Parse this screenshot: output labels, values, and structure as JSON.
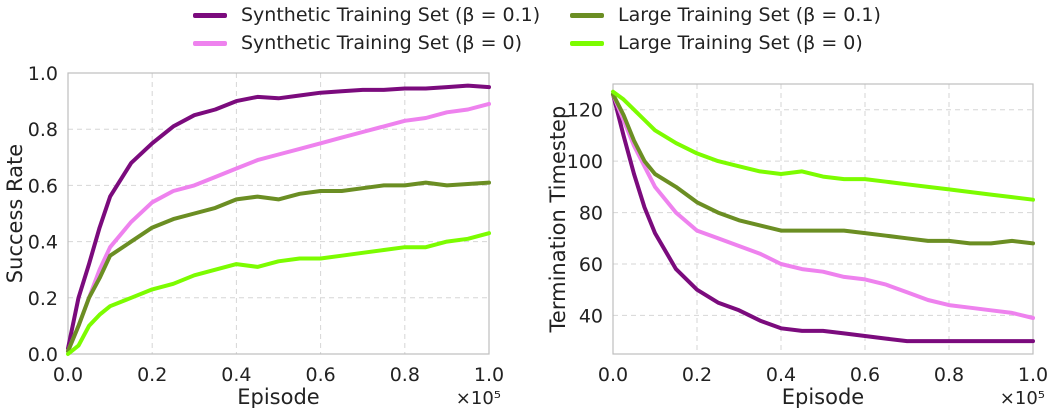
{
  "legend": {
    "items": [
      {
        "name": "Synthetic Training Set (β = 0.1)",
        "color": "#7b0b7d"
      },
      {
        "name": "Large Training Set (β = 0.1)",
        "color": "#6b8e23"
      },
      {
        "name": "Synthetic Training Set (β = 0)",
        "color": "#ee82ee"
      },
      {
        "name": "Large Training Set (β = 0)",
        "color": "#7cfc00"
      }
    ]
  },
  "chart_data": [
    {
      "type": "line",
      "xlabel": "Episode",
      "ylabel": "Success Rate",
      "x_multiplier_label": "×10⁵",
      "xlim": [
        0,
        1.0
      ],
      "ylim": [
        0,
        1.0
      ],
      "xticks": [
        "0.0",
        "0.2",
        "0.4",
        "0.6",
        "0.8",
        "1.0"
      ],
      "yticks": [
        "0.0",
        "0.2",
        "0.4",
        "0.6",
        "0.8",
        "1.0"
      ],
      "grid": true,
      "x": [
        0,
        0.025,
        0.05,
        0.075,
        0.1,
        0.15,
        0.2,
        0.25,
        0.3,
        0.35,
        0.4,
        0.45,
        0.5,
        0.55,
        0.6,
        0.65,
        0.7,
        0.75,
        0.8,
        0.85,
        0.9,
        0.95,
        1.0
      ],
      "series": [
        {
          "name": "Synthetic Training Set (β = 0.1)",
          "color": "#7b0b7d",
          "values": [
            0.02,
            0.2,
            0.32,
            0.45,
            0.56,
            0.68,
            0.75,
            0.81,
            0.85,
            0.87,
            0.9,
            0.915,
            0.91,
            0.92,
            0.93,
            0.935,
            0.94,
            0.94,
            0.945,
            0.945,
            0.95,
            0.955,
            0.95
          ]
        },
        {
          "name": "Synthetic Training Set (β = 0)",
          "color": "#ee82ee",
          "values": [
            0.01,
            0.1,
            0.2,
            0.3,
            0.38,
            0.47,
            0.54,
            0.58,
            0.6,
            0.63,
            0.66,
            0.69,
            0.71,
            0.73,
            0.75,
            0.77,
            0.79,
            0.81,
            0.83,
            0.84,
            0.86,
            0.87,
            0.89
          ]
        },
        {
          "name": "Large Training Set (β = 0.1)",
          "color": "#6b8e23",
          "values": [
            0.01,
            0.1,
            0.2,
            0.27,
            0.35,
            0.4,
            0.45,
            0.48,
            0.5,
            0.52,
            0.55,
            0.56,
            0.55,
            0.57,
            0.58,
            0.58,
            0.59,
            0.6,
            0.6,
            0.61,
            0.6,
            0.605,
            0.61
          ]
        },
        {
          "name": "Large Training Set (β = 0)",
          "color": "#7cfc00",
          "values": [
            0.0,
            0.03,
            0.1,
            0.14,
            0.17,
            0.2,
            0.23,
            0.25,
            0.28,
            0.3,
            0.32,
            0.31,
            0.33,
            0.34,
            0.34,
            0.35,
            0.36,
            0.37,
            0.38,
            0.38,
            0.4,
            0.41,
            0.43
          ]
        }
      ]
    },
    {
      "type": "line",
      "xlabel": "Episode",
      "ylabel": "Termination Timestep",
      "x_multiplier_label": "×10⁵",
      "xlim": [
        0,
        1.0
      ],
      "ylim": [
        25,
        130
      ],
      "xticks": [
        "0.0",
        "0.2",
        "0.4",
        "0.6",
        "0.8",
        "1.0"
      ],
      "ytick_values": [
        40,
        60,
        80,
        100,
        120
      ],
      "yticks": [
        "40",
        "60",
        "80",
        "100",
        "120"
      ],
      "grid": true,
      "x": [
        0,
        0.025,
        0.05,
        0.075,
        0.1,
        0.15,
        0.2,
        0.25,
        0.3,
        0.35,
        0.4,
        0.45,
        0.5,
        0.55,
        0.6,
        0.65,
        0.7,
        0.75,
        0.8,
        0.85,
        0.9,
        0.95,
        1.0
      ],
      "series": [
        {
          "name": "Synthetic Training Set (β = 0.1)",
          "color": "#7b0b7d",
          "values": [
            126,
            110,
            95,
            82,
            72,
            58,
            50,
            45,
            42,
            38,
            35,
            34,
            34,
            33,
            32,
            31,
            30,
            30,
            30,
            30,
            30,
            30,
            30
          ]
        },
        {
          "name": "Synthetic Training Set (β = 0)",
          "color": "#ee82ee",
          "values": [
            126,
            116,
            106,
            98,
            90,
            80,
            73,
            70,
            67,
            64,
            60,
            58,
            57,
            55,
            54,
            52,
            49,
            46,
            44,
            43,
            42,
            41,
            39
          ]
        },
        {
          "name": "Large Training Set (β = 0.1)",
          "color": "#6b8e23",
          "values": [
            126,
            118,
            108,
            100,
            95,
            90,
            84,
            80,
            77,
            75,
            73,
            73,
            73,
            73,
            72,
            71,
            70,
            69,
            69,
            68,
            68,
            69,
            68
          ]
        },
        {
          "name": "Large Training Set (β = 0)",
          "color": "#7cfc00",
          "values": [
            127,
            124,
            120,
            116,
            112,
            107,
            103,
            100,
            98,
            96,
            95,
            96,
            94,
            93,
            93,
            92,
            91,
            90,
            89,
            88,
            87,
            86,
            85
          ]
        }
      ]
    }
  ]
}
